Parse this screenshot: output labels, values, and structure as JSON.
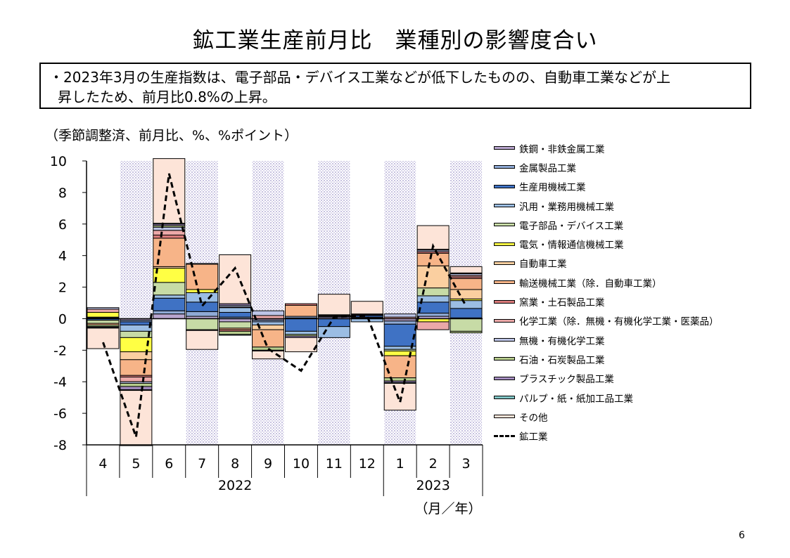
{
  "title": "鉱工業生産前月比　業種別の影響度合い",
  "summary": {
    "line1": "・2023年3月の生産指数は、電子部品・デバイス工業などが低下したものの、自動車工業などが上",
    "line2": "昇したため、前月比0.8%の上昇。"
  },
  "page_number": "6",
  "chart_data": {
    "type": "bar",
    "stacked": true,
    "unit_label": "（季節調整済、前月比、%、%ポイント）",
    "x_unit_label": "（月／年）",
    "categories": [
      "4",
      "5",
      "6",
      "7",
      "8",
      "9",
      "10",
      "11",
      "12",
      "1",
      "2",
      "3"
    ],
    "year_labels": [
      "2022",
      "2023"
    ],
    "year_groups": [
      {
        "label": "2022",
        "start": 0,
        "end": 8
      },
      {
        "label": "2023",
        "start": 9,
        "end": 11
      }
    ],
    "shaded_categories": [
      1,
      3,
      5,
      7,
      9,
      11
    ],
    "ylim": [
      -8,
      10
    ],
    "yticks": [
      "10",
      "8",
      "6",
      "4",
      "2",
      "0",
      "-2",
      "-4",
      "-6",
      "-8"
    ],
    "legend_position": "right",
    "series": [
      {
        "name": "鉄鋼・非鉄金属工業",
        "color": "#b9a6cf",
        "values": [
          0.05,
          -0.1,
          0.3,
          0.15,
          -0.2,
          -0.1,
          0.05,
          0.1,
          0.05,
          -0.15,
          0.15,
          0.05
        ]
      },
      {
        "name": "金属製品工業",
        "color": "#8faad6",
        "values": [
          0.05,
          -0.1,
          0.2,
          0.3,
          0.1,
          -0.1,
          0.1,
          0.05,
          0.05,
          -0.2,
          0.2,
          0.0
        ]
      },
      {
        "name": "生産用機械工業",
        "color": "#3f72c4",
        "values": [
          -0.1,
          -0.2,
          0.8,
          0.6,
          0.3,
          0.0,
          -0.8,
          -0.5,
          0.1,
          -1.4,
          0.7,
          0.6
        ]
      },
      {
        "name": "汎用・業務用機械工業",
        "color": "#9bbde3",
        "values": [
          0.0,
          -0.4,
          0.2,
          0.6,
          0.3,
          -0.2,
          -0.2,
          -0.7,
          -0.2,
          -0.2,
          0.4,
          0.5
        ]
      },
      {
        "name": "電子部品・デバイス工業",
        "color": "#c7dba6",
        "values": [
          -0.2,
          -0.4,
          0.8,
          -0.7,
          -0.4,
          0.0,
          0.0,
          0.0,
          0.0,
          -0.1,
          0.5,
          -0.8
        ]
      },
      {
        "name": "電気・情報通信機械工業",
        "color": "#ffff44",
        "values": [
          0.3,
          -0.9,
          0.9,
          0.2,
          0.0,
          0.0,
          0.0,
          0.0,
          0.0,
          -0.3,
          -0.2,
          0.1
        ]
      },
      {
        "name": "自動車工業",
        "color": "#fbcfa0",
        "values": [
          0.0,
          -0.5,
          0.1,
          0.0,
          0.0,
          -0.3,
          0.0,
          0.0,
          0.0,
          0.0,
          1.4,
          0.6
        ]
      },
      {
        "name": "輸送機械工業（除．自動車工業）",
        "color": "#f7b488",
        "values": [
          -0.1,
          -1.0,
          1.8,
          1.6,
          -0.1,
          -1.1,
          0.7,
          0.0,
          0.0,
          -1.4,
          0.8,
          0.7
        ]
      },
      {
        "name": "窯業・土石製品工業",
        "color": "#d97a7a",
        "values": [
          0.0,
          -0.1,
          0.2,
          0.0,
          -0.1,
          0.0,
          0.1,
          0.05,
          0.05,
          0.0,
          0.1,
          0.1
        ]
      },
      {
        "name": "化学工業（除．無機・有機化学工業・医薬品）",
        "color": "#eba8a8",
        "values": [
          0.2,
          -0.3,
          0.3,
          0.0,
          0.05,
          0.2,
          0.0,
          0.0,
          0.0,
          0.1,
          -0.5,
          0.1
        ]
      },
      {
        "name": "無機・有機化学工業",
        "color": "#bcc4e6",
        "values": [
          0.1,
          -0.1,
          0.2,
          0.05,
          0.1,
          0.3,
          0.0,
          0.05,
          0.0,
          0.2,
          0.1,
          0.1
        ]
      },
      {
        "name": "石油・石炭製品工業",
        "color": "#b6cc8c",
        "values": [
          -0.1,
          -0.2,
          0.1,
          0.0,
          -0.2,
          -0.2,
          -0.1,
          0.0,
          0.0,
          -0.2,
          0.0,
          -0.1
        ]
      },
      {
        "name": "プラスチック製品工業",
        "color": "#a48cbf",
        "values": [
          -0.05,
          -0.2,
          0.1,
          -0.05,
          0.1,
          -0.05,
          -0.1,
          0.0,
          0.05,
          -0.1,
          0.05,
          0.05
        ]
      },
      {
        "name": "パルプ・紙・紙加工品工業",
        "color": "#7fc4c4",
        "values": [
          -0.05,
          -0.05,
          0.05,
          0.0,
          -0.05,
          0.0,
          0.0,
          0.0,
          0.0,
          -0.05,
          0.0,
          0.0
        ]
      },
      {
        "name": "その他",
        "color": "#fde4d8",
        "values": [
          -1.3,
          -3.5,
          4.1,
          -1.2,
          3.1,
          -0.5,
          -0.9,
          1.3,
          0.8,
          -1.7,
          1.5,
          0.4
        ]
      }
    ],
    "line_series": {
      "name": "鉱工業",
      "style": "dashed",
      "values": [
        -1.5,
        -7.5,
        9.2,
        0.8,
        3.2,
        -1.9,
        -3.3,
        0.1,
        0.2,
        -5.3,
        4.6,
        0.8
      ]
    }
  }
}
